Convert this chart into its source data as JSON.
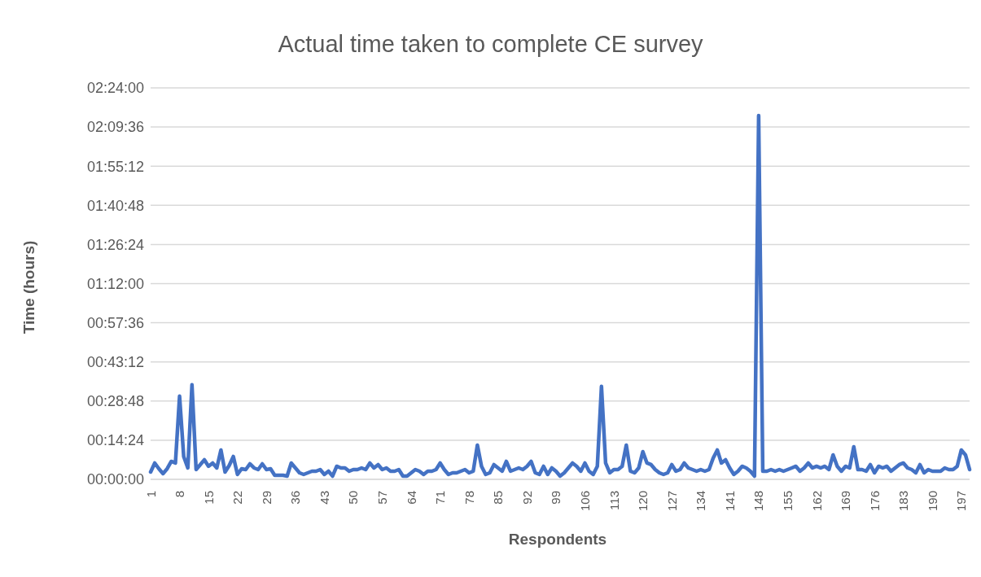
{
  "chart_data": {
    "type": "line",
    "title": "Actual time taken to complete CE survey",
    "xlabel": "Respondents",
    "ylabel": "Time (hours)",
    "categories": [
      "1",
      null,
      null,
      null,
      null,
      null,
      null,
      "8",
      null,
      null,
      null,
      null,
      null,
      null,
      "15",
      null,
      null,
      null,
      null,
      null,
      null,
      "22",
      null,
      null,
      null,
      null,
      null,
      null,
      "29",
      null,
      null,
      null,
      null,
      null,
      null,
      "36",
      null,
      null,
      null,
      null,
      null,
      null,
      "43",
      null,
      null,
      null,
      null,
      null,
      null,
      "50",
      null,
      null,
      null,
      null,
      null,
      null,
      "57",
      null,
      null,
      null,
      null,
      null,
      null,
      "64",
      null,
      null,
      null,
      null,
      null,
      null,
      "71",
      null,
      null,
      null,
      null,
      null,
      null,
      "78",
      null,
      null,
      null,
      null,
      null,
      null,
      "85",
      null,
      null,
      null,
      null,
      null,
      null,
      "92",
      null,
      null,
      null,
      null,
      null,
      null,
      "99",
      null,
      null,
      null,
      null,
      null,
      null,
      "106",
      null,
      null,
      null,
      null,
      null,
      null,
      "113",
      null,
      null,
      null,
      null,
      null,
      null,
      "120",
      null,
      null,
      null,
      null,
      null,
      null,
      "127",
      null,
      null,
      null,
      null,
      null,
      null,
      "134",
      null,
      null,
      null,
      null,
      null,
      null,
      "141",
      null,
      null,
      null,
      null,
      null,
      null,
      "148",
      null,
      null,
      null,
      null,
      null,
      null,
      "155",
      null,
      null,
      null,
      null,
      null,
      null,
      "162",
      null,
      null,
      null,
      null,
      null,
      null,
      "169",
      null,
      null,
      null,
      null,
      null,
      null,
      "176",
      null,
      null,
      null,
      null,
      null,
      null,
      "183",
      null,
      null,
      null,
      null,
      null,
      null,
      "190",
      null,
      null,
      null,
      null,
      null,
      null,
      "197",
      null,
      null
    ],
    "series": [
      {
        "color": "#4472c4",
        "values": [
          0.045,
          0.1,
          0.065,
          0.035,
          0.065,
          0.11,
          0.1,
          0.51,
          0.14,
          0.07,
          0.58,
          0.06,
          0.09,
          0.12,
          0.08,
          0.1,
          0.07,
          0.18,
          0.045,
          0.085,
          0.14,
          0.03,
          0.065,
          0.06,
          0.095,
          0.07,
          0.06,
          0.095,
          0.06,
          0.065,
          0.025,
          0.025,
          0.025,
          0.02,
          0.1,
          0.07,
          0.04,
          0.03,
          0.04,
          0.05,
          0.05,
          0.06,
          0.03,
          0.05,
          0.02,
          0.08,
          0.07,
          0.07,
          0.05,
          0.06,
          0.06,
          0.07,
          0.06,
          0.1,
          0.07,
          0.09,
          0.06,
          0.07,
          0.05,
          0.05,
          0.06,
          0.02,
          0.02,
          0.04,
          0.06,
          0.05,
          0.03,
          0.05,
          0.05,
          0.06,
          0.1,
          0.06,
          0.03,
          0.04,
          0.04,
          0.05,
          0.06,
          0.04,
          0.05,
          0.21,
          0.08,
          0.03,
          0.04,
          0.09,
          0.07,
          0.05,
          0.11,
          0.05,
          0.06,
          0.07,
          0.06,
          0.08,
          0.11,
          0.04,
          0.03,
          0.08,
          0.03,
          0.07,
          0.05,
          0.02,
          0.04,
          0.07,
          0.1,
          0.08,
          0.05,
          0.1,
          0.05,
          0.03,
          0.08,
          0.57,
          0.1,
          0.04,
          0.06,
          0.06,
          0.08,
          0.21,
          0.05,
          0.04,
          0.07,
          0.17,
          0.1,
          0.09,
          0.06,
          0.04,
          0.03,
          0.04,
          0.09,
          0.05,
          0.06,
          0.1,
          0.07,
          0.06,
          0.05,
          0.06,
          0.05,
          0.06,
          0.13,
          0.18,
          0.1,
          0.12,
          0.07,
          0.03,
          0.05,
          0.08,
          0.07,
          0.05,
          0.02,
          2.23,
          0.05,
          0.05,
          0.06,
          0.05,
          0.06,
          0.05,
          0.06,
          0.07,
          0.08,
          0.05,
          0.07,
          0.1,
          0.07,
          0.08,
          0.07,
          0.08,
          0.06,
          0.15,
          0.08,
          0.05,
          0.08,
          0.07,
          0.2,
          0.06,
          0.06,
          0.05,
          0.09,
          0.04,
          0.08,
          0.07,
          0.08,
          0.05,
          0.07,
          0.09,
          0.1,
          0.07,
          0.06,
          0.04,
          0.09,
          0.04,
          0.06,
          0.05,
          0.05,
          0.05,
          0.07,
          0.06,
          0.06,
          0.08,
          0.18,
          0.15,
          0.06
        ]
      }
    ],
    "ylim": [
      0,
      2.4
    ],
    "yticks": [
      {
        "value": 0,
        "label": "00:00:00"
      },
      {
        "value": 0.24,
        "label": "00:14:24"
      },
      {
        "value": 0.48,
        "label": "00:28:48"
      },
      {
        "value": 0.72,
        "label": "00:43:12"
      },
      {
        "value": 0.96,
        "label": "00:57:36"
      },
      {
        "value": 1.2,
        "label": "01:12:00"
      },
      {
        "value": 1.44,
        "label": "01:26:24"
      },
      {
        "value": 1.68,
        "label": "01:40:48"
      },
      {
        "value": 1.92,
        "label": "01:55:12"
      },
      {
        "value": 2.16,
        "label": "02:09:36"
      },
      {
        "value": 2.4,
        "label": "02:24:00"
      }
    ],
    "grid": "y",
    "legend": false,
    "marker": "none",
    "line_style": "solid"
  }
}
